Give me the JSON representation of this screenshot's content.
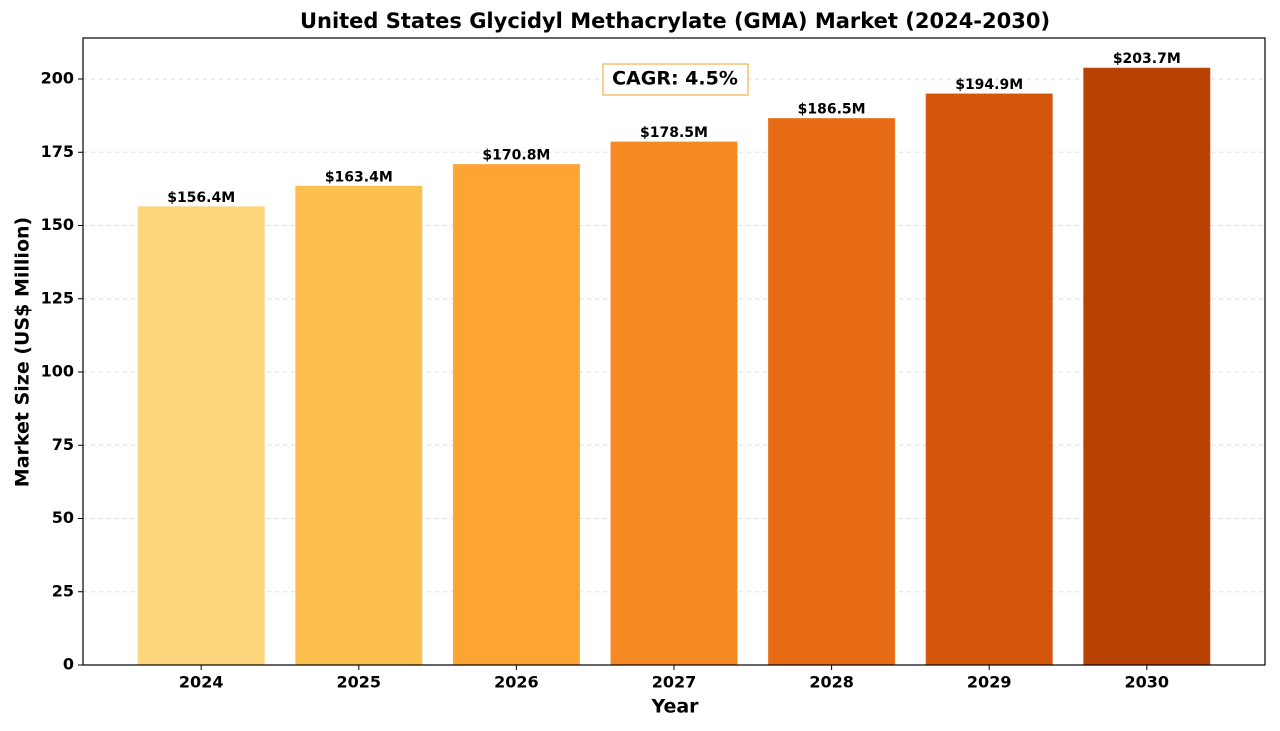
{
  "chart_data": {
    "type": "bar",
    "title": "United States Glycidyl Methacrylate (GMA) Market (2024-2030)",
    "x_label": "Year",
    "y_label": "Market Size (US$ Million)",
    "annotation": "CAGR: 4.5%",
    "categories": [
      "2024",
      "2025",
      "2026",
      "2027",
      "2028",
      "2029",
      "2030"
    ],
    "values": [
      156.4,
      163.4,
      170.8,
      178.5,
      186.5,
      194.9,
      203.7
    ],
    "value_labels": [
      "$156.4M",
      "$163.4M",
      "$170.8M",
      "$178.5M",
      "$186.5M",
      "$194.9M",
      "$203.7M"
    ],
    "colors": [
      "#fdd57a",
      "#fdbf4d",
      "#fca533",
      "#f58a22",
      "#e86c15",
      "#d5560b",
      "#b84104"
    ],
    "ylim": [
      0,
      214
    ],
    "yticks": [
      0,
      25,
      50,
      75,
      100,
      125,
      150,
      175,
      200
    ],
    "grid": true
  }
}
